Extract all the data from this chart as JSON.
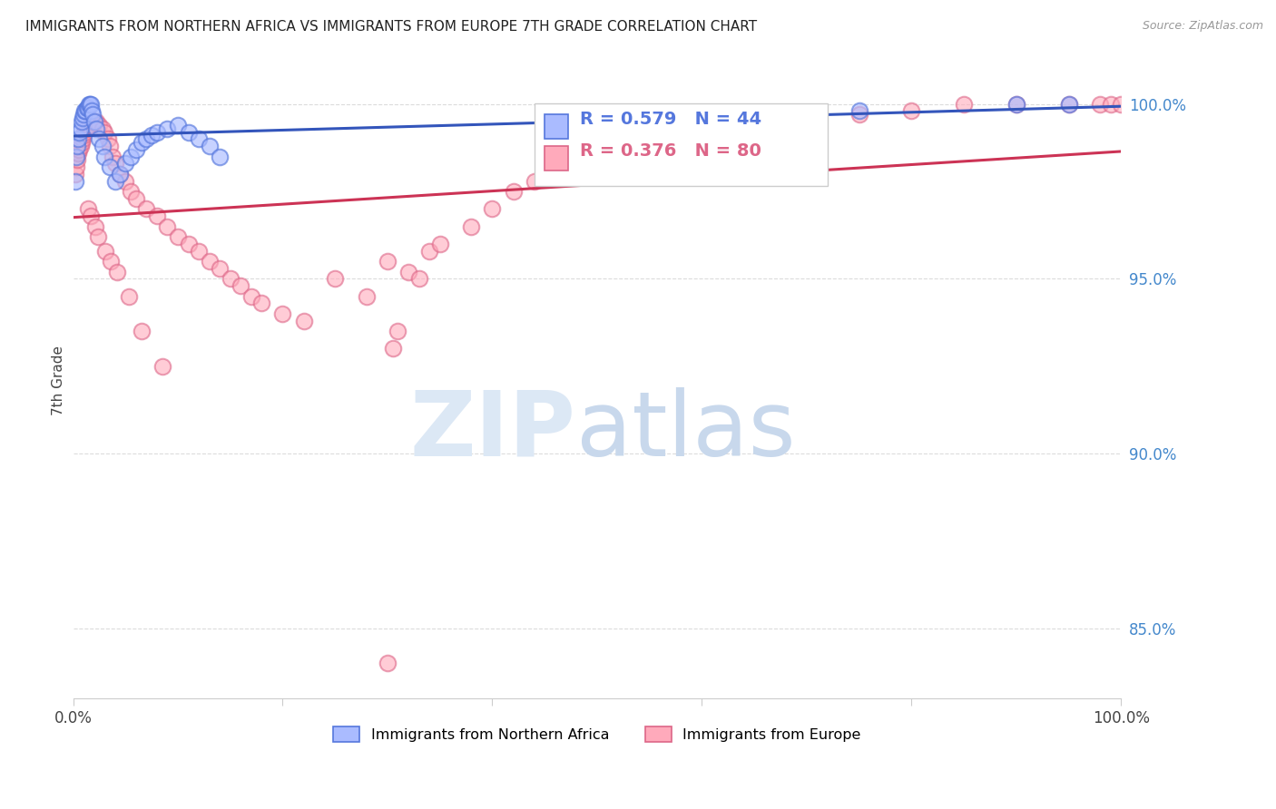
{
  "title": "IMMIGRANTS FROM NORTHERN AFRICA VS IMMIGRANTS FROM EUROPE 7TH GRADE CORRELATION CHART",
  "source": "Source: ZipAtlas.com",
  "ylabel": "7th Grade",
  "xlim": [
    0,
    100
  ],
  "ylim": [
    83.0,
    101.2
  ],
  "yticks": [
    85.0,
    90.0,
    95.0,
    100.0
  ],
  "grid_color": "#cccccc",
  "background_color": "#ffffff",
  "blue_R": 0.579,
  "blue_N": 44,
  "pink_R": 0.376,
  "pink_N": 80,
  "blue_color": "#aabbff",
  "pink_color": "#ffaabb",
  "blue_edge_color": "#5577dd",
  "pink_edge_color": "#dd6688",
  "blue_line_color": "#3355bb",
  "pink_line_color": "#cc3355",
  "legend_label_blue": "Immigrants from Northern Africa",
  "legend_label_pink": "Immigrants from Europe",
  "blue_x": [
    0.2,
    0.3,
    0.4,
    0.5,
    0.6,
    0.7,
    0.8,
    0.9,
    1.0,
    1.1,
    1.2,
    1.3,
    1.4,
    1.5,
    1.6,
    1.7,
    1.8,
    1.9,
    2.0,
    2.2,
    2.5,
    2.8,
    3.0,
    3.5,
    4.0,
    4.5,
    5.0,
    5.5,
    6.0,
    6.5,
    7.0,
    7.5,
    8.0,
    9.0,
    10.0,
    11.0,
    12.0,
    13.0,
    14.0,
    56.0,
    65.0,
    75.0,
    90.0,
    95.0
  ],
  "blue_y": [
    97.8,
    98.5,
    98.8,
    99.0,
    99.2,
    99.3,
    99.5,
    99.6,
    99.7,
    99.8,
    99.8,
    99.9,
    99.9,
    100.0,
    100.0,
    100.0,
    99.8,
    99.7,
    99.5,
    99.3,
    99.0,
    98.8,
    98.5,
    98.2,
    97.8,
    98.0,
    98.3,
    98.5,
    98.7,
    98.9,
    99.0,
    99.1,
    99.2,
    99.3,
    99.4,
    99.2,
    99.0,
    98.8,
    98.5,
    99.5,
    99.7,
    99.8,
    100.0,
    100.0
  ],
  "pink_x": [
    0.2,
    0.3,
    0.4,
    0.5,
    0.6,
    0.7,
    0.8,
    0.9,
    1.0,
    1.1,
    1.2,
    1.3,
    1.5,
    1.6,
    1.8,
    2.0,
    2.2,
    2.5,
    2.8,
    3.0,
    3.3,
    3.5,
    3.8,
    4.0,
    4.5,
    5.0,
    5.5,
    6.0,
    7.0,
    8.0,
    9.0,
    10.0,
    11.0,
    12.0,
    13.0,
    14.0,
    15.0,
    16.0,
    17.0,
    18.0,
    20.0,
    22.0,
    25.0,
    28.0,
    30.0,
    32.0,
    33.0,
    34.0,
    35.0,
    38.0,
    40.0,
    42.0,
    44.0,
    46.0,
    48.0,
    50.0,
    55.0,
    60.0,
    65.0,
    70.0,
    75.0,
    80.0,
    85.0,
    90.0,
    95.0,
    98.0,
    99.0,
    100.0,
    1.4,
    1.7,
    2.1,
    2.4,
    3.1,
    3.6,
    4.2,
    5.3,
    6.5,
    8.5,
    30.5,
    31.0
  ],
  "pink_y": [
    98.0,
    98.2,
    98.4,
    98.6,
    98.7,
    98.8,
    98.9,
    99.0,
    99.1,
    99.2,
    99.3,
    99.3,
    99.4,
    99.4,
    99.5,
    99.5,
    99.5,
    99.4,
    99.3,
    99.2,
    99.0,
    98.8,
    98.5,
    98.3,
    98.0,
    97.8,
    97.5,
    97.3,
    97.0,
    96.8,
    96.5,
    96.2,
    96.0,
    95.8,
    95.5,
    95.3,
    95.0,
    94.8,
    94.5,
    94.3,
    94.0,
    93.8,
    95.0,
    94.5,
    95.5,
    95.2,
    95.0,
    95.8,
    96.0,
    96.5,
    97.0,
    97.5,
    97.8,
    98.0,
    98.2,
    98.5,
    99.0,
    99.3,
    99.5,
    99.6,
    99.7,
    99.8,
    100.0,
    100.0,
    100.0,
    100.0,
    100.0,
    100.0,
    97.0,
    96.8,
    96.5,
    96.2,
    95.8,
    95.5,
    95.2,
    94.5,
    93.5,
    92.5,
    93.0,
    93.5
  ],
  "outlier_pink_x": [
    30.0
  ],
  "outlier_pink_y": [
    84.0
  ]
}
